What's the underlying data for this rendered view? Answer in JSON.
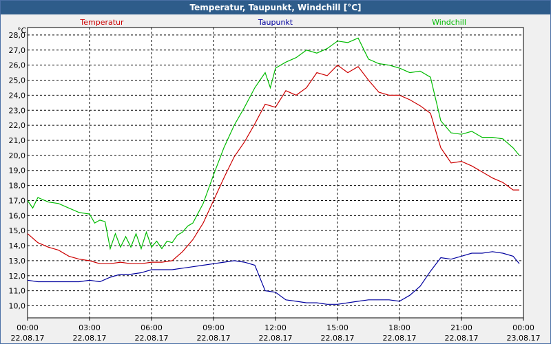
{
  "window": {
    "title": "Temperatur, Taupunkt, Windchill [°C]"
  },
  "chart_data": {
    "type": "line",
    "unit_label": "°C",
    "ylim": [
      9.2,
      28.5
    ],
    "y_ticks": [
      "10,0",
      "11,0",
      "12,0",
      "13,0",
      "14,0",
      "15,0",
      "16,0",
      "17,0",
      "18,0",
      "19,0",
      "20,0",
      "21,0",
      "22,0",
      "23,0",
      "24,0",
      "25,0",
      "26,0",
      "27,0",
      "28,0"
    ],
    "x_ticks": [
      {
        "time": "00:00",
        "date": "22.08.17"
      },
      {
        "time": "03:00",
        "date": "22.08.17"
      },
      {
        "time": "06:00",
        "date": "22.08.17"
      },
      {
        "time": "09:00",
        "date": "22.08.17"
      },
      {
        "time": "12:00",
        "date": "22.08.17"
      },
      {
        "time": "15:00",
        "date": "22.08.17"
      },
      {
        "time": "18:00",
        "date": "22.08.17"
      },
      {
        "time": "21:00",
        "date": "22.08.17"
      },
      {
        "time": "00:00",
        "date": "23.08.17"
      }
    ],
    "grid": true,
    "legend_position": "top",
    "series": [
      {
        "name": "Temperatur",
        "color": "#cc0000",
        "x": [
          0,
          0.5,
          1,
          1.5,
          2,
          2.5,
          3,
          3.5,
          4,
          4.5,
          5,
          5.5,
          6,
          6.5,
          7,
          7.5,
          8,
          8.5,
          9,
          9.5,
          10,
          10.5,
          11,
          11.5,
          12,
          12.5,
          13,
          13.5,
          14,
          14.5,
          15,
          15.5,
          16,
          16.5,
          17,
          17.5,
          18,
          18.5,
          19,
          19.5,
          20,
          20.5,
          21,
          21.5,
          22,
          22.5,
          23,
          23.5,
          23.8
        ],
        "y": [
          14.8,
          14.2,
          13.9,
          13.7,
          13.3,
          13.1,
          13.0,
          12.8,
          12.8,
          12.9,
          12.8,
          12.8,
          12.9,
          12.9,
          13.0,
          13.6,
          14.4,
          15.5,
          17.0,
          18.5,
          19.9,
          20.9,
          22.1,
          23.4,
          23.2,
          24.3,
          24.0,
          24.5,
          25.5,
          25.3,
          26.0,
          25.5,
          25.9,
          25.0,
          24.2,
          24.0,
          24.0,
          23.7,
          23.3,
          22.8,
          20.5,
          19.5,
          19.6,
          19.3,
          18.9,
          18.5,
          18.2,
          17.7,
          17.7
        ]
      },
      {
        "name": "Taupunkt",
        "color": "#00009e",
        "x": [
          0,
          0.5,
          1,
          1.5,
          2,
          2.5,
          3,
          3.5,
          4,
          4.5,
          5,
          5.5,
          6,
          6.5,
          7,
          7.5,
          8,
          8.5,
          9,
          9.5,
          10,
          10.5,
          11,
          11.5,
          12,
          12.5,
          13,
          13.5,
          14,
          14.5,
          15,
          15.5,
          16,
          16.5,
          17,
          17.5,
          18,
          18.5,
          19,
          19.5,
          20,
          20.5,
          21,
          21.5,
          22,
          22.5,
          23,
          23.5,
          23.8
        ],
        "y": [
          11.7,
          11.6,
          11.6,
          11.6,
          11.6,
          11.6,
          11.7,
          11.6,
          11.9,
          12.1,
          12.1,
          12.2,
          12.4,
          12.4,
          12.4,
          12.5,
          12.6,
          12.7,
          12.8,
          12.9,
          13.0,
          12.9,
          12.7,
          11.0,
          10.9,
          10.4,
          10.3,
          10.2,
          10.2,
          10.1,
          10.1,
          10.2,
          10.3,
          10.4,
          10.4,
          10.4,
          10.3,
          10.7,
          11.3,
          12.3,
          13.2,
          13.1,
          13.3,
          13.5,
          13.5,
          13.6,
          13.5,
          13.3,
          12.8
        ]
      },
      {
        "name": "Windchill",
        "color": "#00bb00",
        "x": [
          0,
          0.25,
          0.5,
          1,
          1.5,
          2,
          2.5,
          3,
          3.25,
          3.5,
          3.75,
          4,
          4.25,
          4.5,
          4.75,
          5,
          5.25,
          5.5,
          5.75,
          6,
          6.25,
          6.5,
          6.75,
          7,
          7.25,
          7.5,
          7.75,
          8,
          8.5,
          9,
          9.5,
          10,
          10.5,
          11,
          11.5,
          11.75,
          12,
          12.5,
          13,
          13.5,
          14,
          14.5,
          15,
          15.5,
          16,
          16.5,
          17,
          17.5,
          18,
          18.5,
          19,
          19.5,
          20,
          20.5,
          21,
          21.5,
          22,
          22.5,
          23,
          23.5,
          23.8
        ],
        "y": [
          17.0,
          16.5,
          17.2,
          16.9,
          16.8,
          16.5,
          16.2,
          16.1,
          15.5,
          15.7,
          15.6,
          13.8,
          14.8,
          13.9,
          14.6,
          13.9,
          14.8,
          13.8,
          14.9,
          13.9,
          14.3,
          13.8,
          14.3,
          14.2,
          14.7,
          14.9,
          15.3,
          15.5,
          16.8,
          18.7,
          20.5,
          22.0,
          23.2,
          24.5,
          25.5,
          24.5,
          25.8,
          26.2,
          26.5,
          27.0,
          26.8,
          27.1,
          27.6,
          27.5,
          27.8,
          26.4,
          26.1,
          26.0,
          25.8,
          25.5,
          25.6,
          25.2,
          22.3,
          21.5,
          21.4,
          21.6,
          21.2,
          21.2,
          21.1,
          20.5,
          20.0
        ]
      }
    ]
  }
}
